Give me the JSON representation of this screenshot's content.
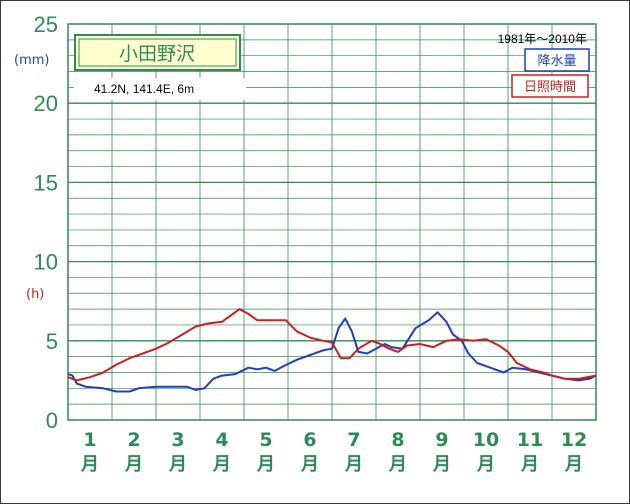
{
  "chart_data": {
    "type": "line",
    "station": "小田野沢",
    "location": "41.2N,  141.4E,  6m",
    "period": "1981年～2010年",
    "y_unit_precip": "(mm)",
    "y_unit_sun": "(h)",
    "yticks": [
      0,
      5,
      10,
      15,
      20,
      25
    ],
    "ylim": [
      0,
      25
    ],
    "categories": [
      "1",
      "2",
      "3",
      "4",
      "5",
      "6",
      "7",
      "8",
      "9",
      "10",
      "11",
      "12"
    ],
    "month_suffix": "月",
    "grid": true,
    "legend_position": "top-right",
    "series": [
      {
        "name": "降水量",
        "color": "#1f3fbf",
        "points": [
          [
            0.0,
            2.9
          ],
          [
            0.1,
            2.8
          ],
          [
            0.2,
            2.3
          ],
          [
            0.4,
            2.1
          ],
          [
            0.8,
            2.0
          ],
          [
            1.1,
            1.8
          ],
          [
            1.4,
            1.8
          ],
          [
            1.6,
            2.0
          ],
          [
            2.0,
            2.1
          ],
          [
            2.4,
            2.1
          ],
          [
            2.7,
            2.1
          ],
          [
            2.9,
            1.9
          ],
          [
            3.1,
            2.0
          ],
          [
            3.3,
            2.6
          ],
          [
            3.5,
            2.8
          ],
          [
            3.8,
            2.9
          ],
          [
            4.1,
            3.3
          ],
          [
            4.3,
            3.2
          ],
          [
            4.5,
            3.3
          ],
          [
            4.7,
            3.1
          ],
          [
            4.9,
            3.4
          ],
          [
            5.2,
            3.8
          ],
          [
            5.5,
            4.1
          ],
          [
            5.8,
            4.4
          ],
          [
            6.0,
            4.5
          ],
          [
            6.15,
            5.8
          ],
          [
            6.3,
            6.4
          ],
          [
            6.45,
            5.6
          ],
          [
            6.6,
            4.3
          ],
          [
            6.8,
            4.2
          ],
          [
            7.0,
            4.5
          ],
          [
            7.2,
            4.8
          ],
          [
            7.35,
            4.6
          ],
          [
            7.6,
            4.5
          ],
          [
            7.9,
            5.8
          ],
          [
            8.2,
            6.3
          ],
          [
            8.4,
            6.8
          ],
          [
            8.6,
            6.2
          ],
          [
            8.75,
            5.4
          ],
          [
            8.95,
            5.0
          ],
          [
            9.1,
            4.2
          ],
          [
            9.3,
            3.6
          ],
          [
            9.6,
            3.3
          ],
          [
            9.9,
            3.0
          ],
          [
            10.1,
            3.3
          ],
          [
            10.4,
            3.2
          ],
          [
            10.7,
            3.0
          ],
          [
            11.0,
            2.8
          ],
          [
            11.3,
            2.6
          ],
          [
            11.6,
            2.5
          ],
          [
            11.85,
            2.6
          ],
          [
            12.0,
            2.8
          ]
        ]
      },
      {
        "name": "日照時間",
        "color": "#cc2020",
        "points": [
          [
            0.0,
            2.7
          ],
          [
            0.2,
            2.5
          ],
          [
            0.5,
            2.7
          ],
          [
            0.8,
            3.0
          ],
          [
            1.1,
            3.5
          ],
          [
            1.4,
            3.9
          ],
          [
            1.7,
            4.2
          ],
          [
            2.0,
            4.5
          ],
          [
            2.3,
            4.9
          ],
          [
            2.6,
            5.4
          ],
          [
            2.9,
            5.9
          ],
          [
            3.2,
            6.1
          ],
          [
            3.5,
            6.2
          ],
          [
            3.7,
            6.6
          ],
          [
            3.9,
            7.0
          ],
          [
            4.1,
            6.7
          ],
          [
            4.3,
            6.3
          ],
          [
            4.6,
            6.3
          ],
          [
            4.95,
            6.3
          ],
          [
            5.2,
            5.6
          ],
          [
            5.5,
            5.2
          ],
          [
            5.8,
            5.0
          ],
          [
            6.0,
            4.9
          ],
          [
            6.2,
            3.9
          ],
          [
            6.4,
            3.9
          ],
          [
            6.6,
            4.5
          ],
          [
            6.9,
            5.0
          ],
          [
            7.1,
            4.8
          ],
          [
            7.3,
            4.5
          ],
          [
            7.5,
            4.3
          ],
          [
            7.7,
            4.7
          ],
          [
            8.0,
            4.8
          ],
          [
            8.3,
            4.6
          ],
          [
            8.6,
            5.0
          ],
          [
            8.9,
            5.1
          ],
          [
            9.2,
            5.0
          ],
          [
            9.5,
            5.1
          ],
          [
            9.8,
            4.7
          ],
          [
            10.0,
            4.3
          ],
          [
            10.2,
            3.6
          ],
          [
            10.5,
            3.2
          ],
          [
            10.8,
            3.0
          ],
          [
            11.0,
            2.8
          ],
          [
            11.3,
            2.6
          ],
          [
            11.6,
            2.6
          ],
          [
            12.0,
            2.8
          ]
        ]
      }
    ]
  }
}
